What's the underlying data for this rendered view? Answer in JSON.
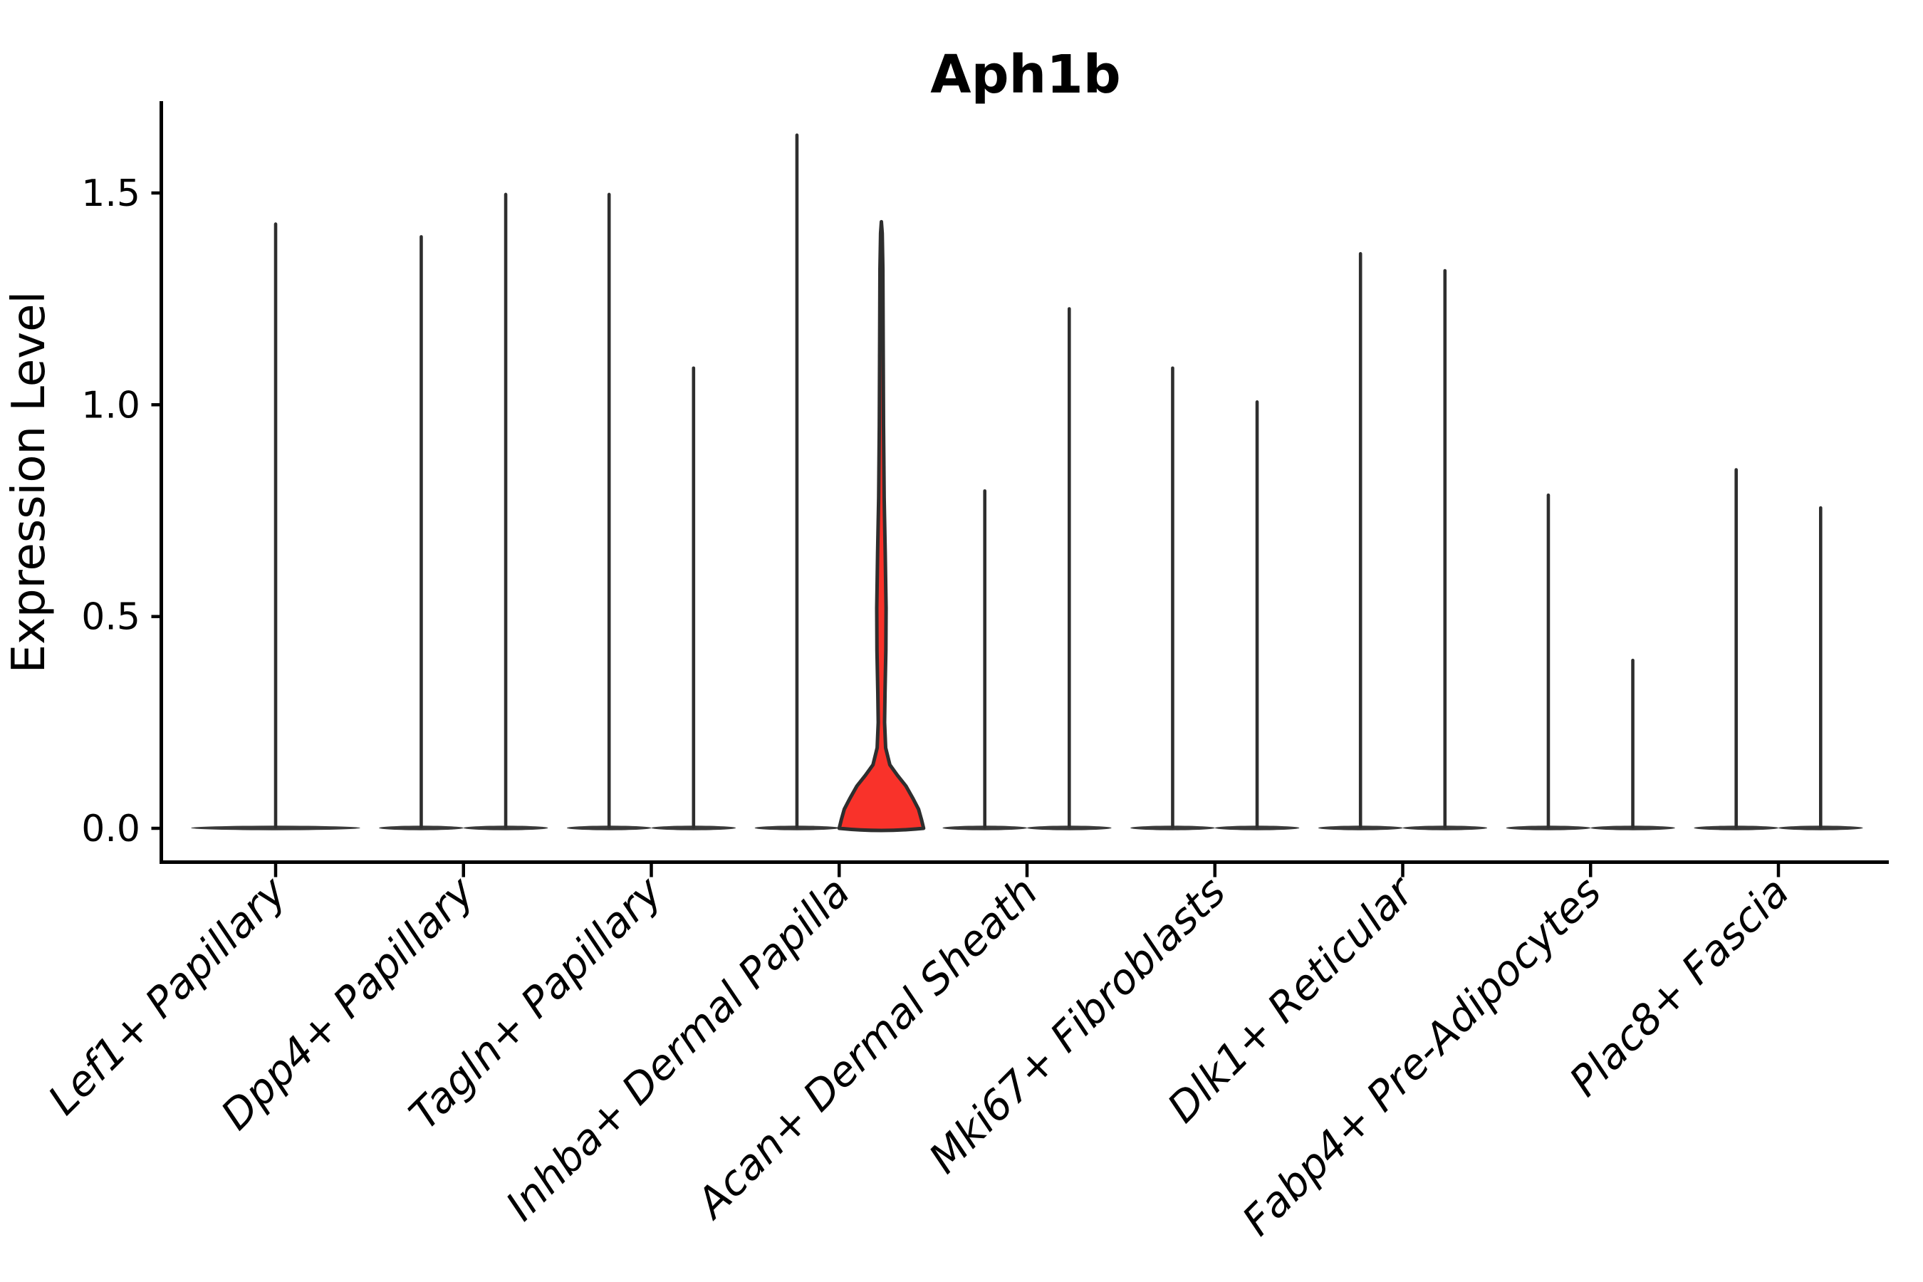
{
  "chart_data": {
    "type": "violin",
    "title": "Aph1b",
    "ylabel": "Expression Level",
    "xlabel": "",
    "yticks": [
      "0.0",
      "0.5",
      "1.0",
      "1.5"
    ],
    "ytick_values": [
      0.0,
      0.5,
      1.0,
      1.5
    ],
    "ylim": [
      -0.08,
      1.72
    ],
    "grid": false,
    "legend": "none",
    "categories": [
      "Lef1+ Papillary",
      "Dpp4+ Papillary",
      "Tagln+ Papillary",
      "Inhba+ Dermal Papilla",
      "Acan+ Dermal Sheath",
      "Mki67+ Fibroblasts",
      "Dlk1+ Reticular",
      "Fabp4+ Pre-Adipocytes",
      "Plac8+ Fascia"
    ],
    "violins": [
      {
        "cat": 0,
        "pos": 0,
        "tip": 1.43,
        "fill": "none"
      },
      {
        "cat": 1,
        "pos": -1,
        "tip": 1.4,
        "fill": "none"
      },
      {
        "cat": 1,
        "pos": 1,
        "tip": 1.5,
        "fill": "none"
      },
      {
        "cat": 2,
        "pos": -1,
        "tip": 1.5,
        "fill": "none"
      },
      {
        "cat": 2,
        "pos": 1,
        "tip": 1.09,
        "fill": "none"
      },
      {
        "cat": 3,
        "pos": -1,
        "tip": 1.64,
        "fill": "none"
      },
      {
        "cat": 3,
        "pos": 1,
        "tip": 1.43,
        "fill": "#f9322a",
        "highlighted": true,
        "profile": [
          [
            0.0,
            1.0
          ],
          [
            0.02,
            0.95
          ],
          [
            0.045,
            0.88
          ],
          [
            0.07,
            0.75
          ],
          [
            0.1,
            0.58
          ],
          [
            0.125,
            0.38
          ],
          [
            0.15,
            0.2
          ],
          [
            0.19,
            0.1
          ],
          [
            0.25,
            0.075
          ],
          [
            0.32,
            0.085
          ],
          [
            0.42,
            0.105
          ],
          [
            0.52,
            0.11
          ],
          [
            0.65,
            0.09
          ],
          [
            0.78,
            0.065
          ],
          [
            0.95,
            0.05
          ],
          [
            1.15,
            0.042
          ],
          [
            1.32,
            0.035
          ],
          [
            1.405,
            0.02
          ],
          [
            1.432,
            0.0
          ]
        ]
      },
      {
        "cat": 4,
        "pos": -1,
        "tip": 0.8,
        "fill": "none"
      },
      {
        "cat": 4,
        "pos": 1,
        "tip": 1.23,
        "fill": "none"
      },
      {
        "cat": 5,
        "pos": -1,
        "tip": 1.09,
        "fill": "none"
      },
      {
        "cat": 5,
        "pos": 1,
        "tip": 1.01,
        "fill": "none"
      },
      {
        "cat": 6,
        "pos": -1,
        "tip": 1.36,
        "fill": "none"
      },
      {
        "cat": 6,
        "pos": 1,
        "tip": 1.32,
        "fill": "none"
      },
      {
        "cat": 7,
        "pos": -1,
        "tip": 0.79,
        "fill": "none"
      },
      {
        "cat": 7,
        "pos": 1,
        "tip": 0.4,
        "fill": "none"
      },
      {
        "cat": 8,
        "pos": -1,
        "tip": 0.85,
        "fill": "none"
      },
      {
        "cat": 8,
        "pos": 1,
        "tip": 0.76,
        "fill": "none"
      }
    ],
    "colors": {
      "violin_stroke": "#2e2e2e",
      "baseline_fill": "#3a3a3a",
      "highlight_fill": "#f9322a",
      "axis": "#000000",
      "background": "#ffffff"
    }
  }
}
